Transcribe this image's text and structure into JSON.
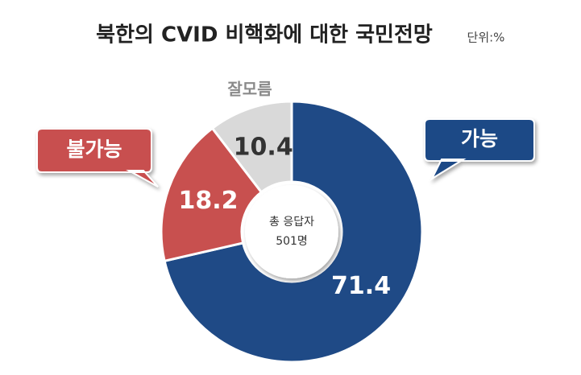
{
  "chart_data": {
    "type": "donut",
    "title": "북한의 CVID 비핵화에 대한 국민전망",
    "unit": "단위:%",
    "categories": [
      "가능",
      "불가능",
      "잘모름"
    ],
    "values": [
      71.4,
      18.2,
      10.4
    ],
    "colors": [
      "#1f4a86",
      "#c8504f",
      "#d9d9d9"
    ],
    "center_text": [
      "총 응답자",
      "501명"
    ]
  }
}
